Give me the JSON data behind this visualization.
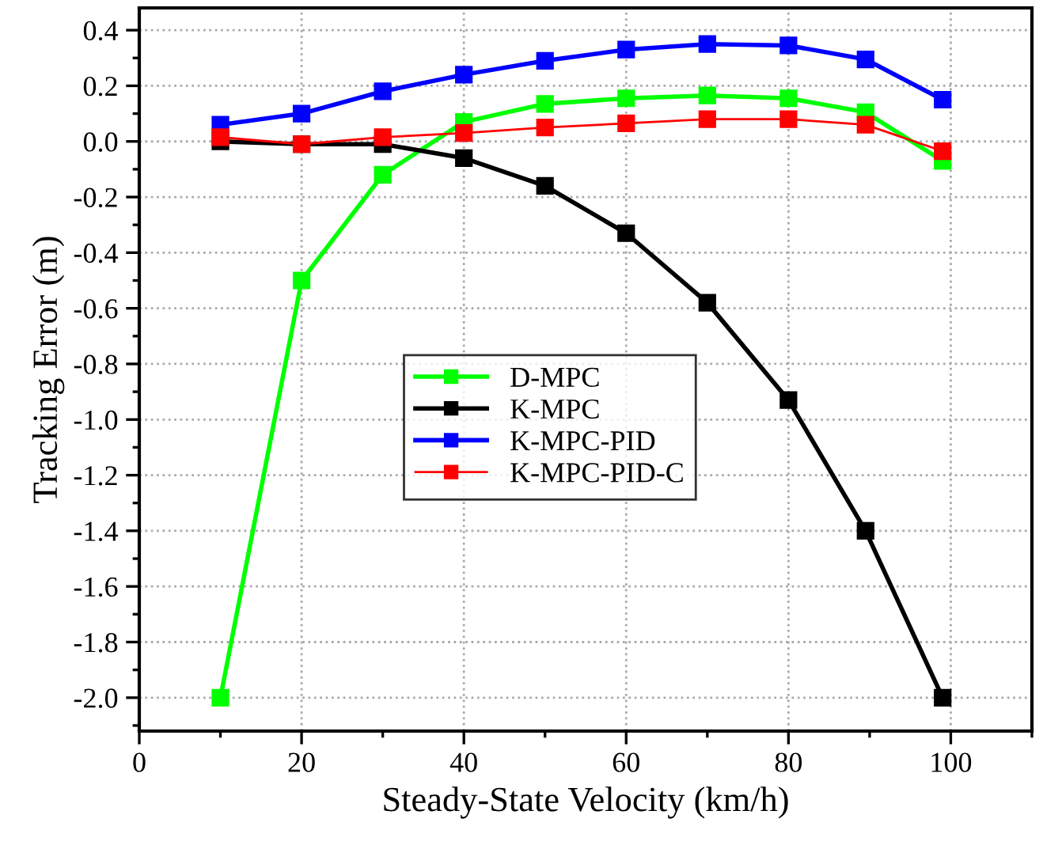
{
  "chart_data": {
    "type": "line",
    "xlabel": "Steady-State Velocity (km/h)",
    "ylabel": "Tracking Error (m)",
    "x": [
      10,
      20,
      30,
      40,
      50,
      60,
      70,
      80,
      89.5,
      99
    ],
    "series": [
      {
        "name": "D-MPC",
        "color": "#00ff00",
        "values": [
          -2.0,
          -0.5,
          -0.12,
          0.07,
          0.135,
          0.155,
          0.165,
          0.155,
          0.105,
          -0.07
        ]
      },
      {
        "name": "K-MPC",
        "color": "#000000",
        "values": [
          0.0,
          -0.01,
          -0.01,
          -0.06,
          -0.16,
          -0.33,
          -0.58,
          -0.93,
          -1.4,
          -2.0
        ]
      },
      {
        "name": "K-MPC-PID",
        "color": "#0000ff",
        "values": [
          0.06,
          0.1,
          0.18,
          0.24,
          0.29,
          0.33,
          0.35,
          0.345,
          0.295,
          0.15
        ]
      },
      {
        "name": "K-MPC-PID-C",
        "color": "#ff0000",
        "values": [
          0.015,
          -0.01,
          0.015,
          0.03,
          0.05,
          0.065,
          0.08,
          0.08,
          0.06,
          -0.035
        ]
      }
    ],
    "xlim": [
      0,
      110
    ],
    "xticks": [
      0,
      20,
      40,
      60,
      80,
      100
    ],
    "ylim": [
      -2.12,
      0.48
    ],
    "yticks": [
      {
        "value": -2.0,
        "label": "-2.0"
      },
      {
        "value": -1.8,
        "label": "-1.8"
      },
      {
        "value": -1.6,
        "label": "-1.6"
      },
      {
        "value": -1.4,
        "label": "-1.4"
      },
      {
        "value": -1.2,
        "label": "-1.2"
      },
      {
        "value": -1.0,
        "label": "-1.0"
      },
      {
        "value": -0.8,
        "label": "-0.8"
      },
      {
        "value": -0.6,
        "label": "-0.6"
      },
      {
        "value": -0.4,
        "label": "-0.4"
      },
      {
        "value": -0.2,
        "label": "-0.2"
      },
      {
        "value": 0.0,
        "label": "0.0"
      },
      {
        "value": 0.2,
        "label": "0.2"
      },
      {
        "value": 0.4,
        "label": "0.4"
      }
    ],
    "grid": true,
    "legend": "center",
    "marker": "square",
    "line_style": "solid"
  }
}
